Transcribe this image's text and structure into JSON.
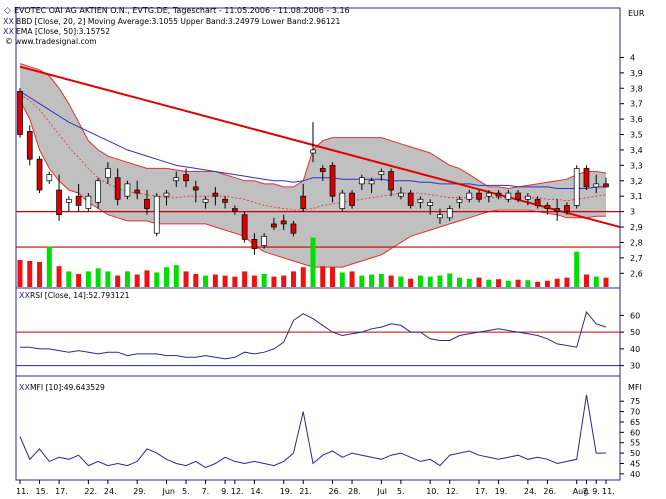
{
  "header": {
    "title_line": "EVOTEC OAI AG AKTIEN O.N., EVTG.DE, Tageschart - 11.05.2006 - 11.08.2006 - 3.16",
    "bb_line": "BBD [Close, 20, 2] Moving Average:3.1055 Upper Band:3.24979 Lower Band:2.96121",
    "ema_line": "EMA [Close, 50]:3.15752",
    "site_line": "www.tradesignal.com",
    "currency": "EUR"
  },
  "colors": {
    "bb_fill": "#c0c0c0",
    "bb_band": "#e03030",
    "ema": "#3030c8",
    "trendline": "#e00000",
    "up_candle": "#ffffff",
    "down_candle": "#d80000",
    "vol_up": "#00dd00",
    "vol_down": "#ee1111",
    "rsi_line": "#2a2a88",
    "mfi_line": "#2a2a88",
    "hline": "#cc0000",
    "panel_border": "#2a2a88"
  },
  "chart_data": [
    {
      "type": "candlestick",
      "title": "EVOTEC OAI AG AKTIEN O.N., EVTG.DE, Tageschart - 11.05.2006 - 11.08.2006 - 3.16",
      "ylabel": "EUR",
      "ylim": [
        2.55,
        4.1
      ],
      "yticks": [
        2.6,
        2.7,
        2.8,
        2.9,
        3,
        3.1,
        3.2,
        3.3,
        3.4,
        3.5,
        3.6,
        3.7,
        3.8,
        3.9,
        4
      ],
      "ohlc": [
        [
          3.78,
          3.8,
          3.48,
          3.5
        ],
        [
          3.52,
          3.56,
          3.3,
          3.34
        ],
        [
          3.34,
          3.36,
          3.12,
          3.14
        ],
        [
          3.2,
          3.26,
          3.18,
          3.24
        ],
        [
          3.14,
          3.24,
          2.94,
          2.98
        ],
        [
          3.06,
          3.1,
          3.0,
          3.08
        ],
        [
          3.1,
          3.18,
          3.0,
          3.04
        ],
        [
          3.02,
          3.12,
          3.0,
          3.1
        ],
        [
          3.06,
          3.22,
          3.02,
          3.2
        ],
        [
          3.22,
          3.32,
          3.18,
          3.28
        ],
        [
          3.22,
          3.28,
          3.04,
          3.08
        ],
        [
          3.1,
          3.2,
          3.08,
          3.18
        ],
        [
          3.14,
          3.2,
          3.08,
          3.12
        ],
        [
          3.08,
          3.14,
          2.98,
          3.02
        ],
        [
          2.86,
          3.12,
          2.84,
          3.1
        ],
        [
          3.1,
          3.14,
          3.04,
          3.12
        ],
        [
          3.2,
          3.26,
          3.16,
          3.22
        ],
        [
          3.24,
          3.28,
          3.16,
          3.2
        ],
        [
          3.16,
          3.2,
          3.06,
          3.14
        ],
        [
          3.06,
          3.1,
          3.02,
          3.08
        ],
        [
          3.12,
          3.16,
          3.04,
          3.1
        ],
        [
          3.08,
          3.1,
          3.02,
          3.06
        ],
        [
          3.02,
          3.04,
          2.98,
          3.0
        ],
        [
          2.98,
          3.0,
          2.8,
          2.82
        ],
        [
          2.82,
          2.86,
          2.72,
          2.76
        ],
        [
          2.78,
          2.86,
          2.76,
          2.84
        ],
        [
          2.92,
          2.96,
          2.88,
          2.9
        ],
        [
          2.94,
          2.98,
          2.88,
          2.92
        ],
        [
          2.92,
          2.94,
          2.84,
          2.86
        ],
        [
          3.1,
          3.18,
          3.0,
          3.02
        ],
        [
          3.38,
          3.58,
          3.32,
          3.4
        ],
        [
          3.28,
          3.3,
          3.2,
          3.26
        ],
        [
          3.3,
          3.32,
          3.06,
          3.1
        ],
        [
          3.02,
          3.14,
          3.0,
          3.12
        ],
        [
          3.12,
          3.14,
          3.02,
          3.04
        ],
        [
          3.18,
          3.24,
          3.14,
          3.22
        ],
        [
          3.18,
          3.22,
          3.12,
          3.2
        ],
        [
          3.24,
          3.28,
          3.2,
          3.26
        ],
        [
          3.26,
          3.28,
          3.1,
          3.14
        ],
        [
          3.1,
          3.16,
          3.08,
          3.12
        ],
        [
          3.12,
          3.14,
          3.02,
          3.04
        ],
        [
          3.06,
          3.1,
          3.02,
          3.08
        ],
        [
          3.04,
          3.08,
          2.98,
          3.06
        ],
        [
          2.96,
          3.02,
          2.92,
          2.98
        ],
        [
          2.96,
          3.04,
          2.94,
          3.02
        ],
        [
          3.06,
          3.1,
          3.02,
          3.08
        ],
        [
          3.08,
          3.14,
          3.06,
          3.12
        ],
        [
          3.12,
          3.14,
          3.06,
          3.08
        ],
        [
          3.1,
          3.14,
          3.06,
          3.12
        ],
        [
          3.12,
          3.14,
          3.08,
          3.1
        ],
        [
          3.08,
          3.14,
          3.06,
          3.12
        ],
        [
          3.12,
          3.14,
          3.06,
          3.08
        ],
        [
          3.08,
          3.12,
          3.04,
          3.1
        ],
        [
          3.08,
          3.1,
          3.02,
          3.04
        ],
        [
          3.04,
          3.06,
          2.98,
          3.02
        ],
        [
          3.02,
          3.08,
          2.94,
          3.0
        ],
        [
          3.04,
          3.06,
          2.98,
          3.0
        ],
        [
          3.04,
          3.3,
          3.02,
          3.28
        ],
        [
          3.28,
          3.3,
          3.14,
          3.16
        ],
        [
          3.16,
          3.24,
          3.12,
          3.18
        ],
        [
          3.18,
          3.22,
          3.16,
          3.16
        ]
      ],
      "bb_upper": [
        3.96,
        3.94,
        3.92,
        3.88,
        3.8,
        3.7,
        3.58,
        3.46,
        3.4,
        3.36,
        3.34,
        3.32,
        3.3,
        3.28,
        3.28,
        3.28,
        3.27,
        3.26,
        3.26,
        3.26,
        3.26,
        3.24,
        3.22,
        3.2,
        3.2,
        3.18,
        3.18,
        3.16,
        3.16,
        3.2,
        3.4,
        3.46,
        3.48,
        3.48,
        3.48,
        3.48,
        3.48,
        3.48,
        3.46,
        3.44,
        3.42,
        3.4,
        3.38,
        3.34,
        3.3,
        3.28,
        3.24,
        3.2,
        3.16,
        3.16,
        3.15,
        3.16,
        3.17,
        3.18,
        3.19,
        3.2,
        3.21,
        3.24,
        3.26,
        3.26,
        3.25
      ],
      "bb_mid": [
        3.76,
        3.72,
        3.66,
        3.58,
        3.5,
        3.42,
        3.35,
        3.28,
        3.22,
        3.18,
        3.15,
        3.13,
        3.12,
        3.11,
        3.1,
        3.09,
        3.09,
        3.1,
        3.1,
        3.1,
        3.1,
        3.1,
        3.09,
        3.08,
        3.06,
        3.04,
        3.03,
        3.02,
        3.01,
        3.01,
        3.02,
        3.04,
        3.05,
        3.06,
        3.07,
        3.08,
        3.09,
        3.1,
        3.11,
        3.12,
        3.12,
        3.12,
        3.11,
        3.1,
        3.09,
        3.09,
        3.09,
        3.09,
        3.09,
        3.09,
        3.09,
        3.09,
        3.09,
        3.09,
        3.08,
        3.08,
        3.07,
        3.08,
        3.09,
        3.1,
        3.11
      ],
      "bb_lower": [
        3.72,
        3.6,
        3.4,
        3.28,
        3.2,
        3.14,
        3.12,
        3.06,
        3.02,
        2.98,
        2.96,
        2.94,
        2.94,
        2.94,
        2.92,
        2.92,
        2.92,
        2.92,
        2.92,
        2.92,
        2.9,
        2.88,
        2.86,
        2.84,
        2.78,
        2.74,
        2.72,
        2.7,
        2.68,
        2.66,
        2.64,
        2.64,
        2.64,
        2.64,
        2.66,
        2.68,
        2.7,
        2.72,
        2.76,
        2.8,
        2.84,
        2.86,
        2.88,
        2.9,
        2.92,
        2.94,
        2.96,
        2.98,
        3.0,
        3.01,
        3.01,
        3.01,
        3.01,
        3.0,
        2.99,
        2.98,
        2.96,
        2.96,
        2.96,
        2.97,
        2.97
      ],
      "ema50": [
        3.78,
        3.74,
        3.7,
        3.66,
        3.62,
        3.58,
        3.55,
        3.52,
        3.49,
        3.46,
        3.43,
        3.4,
        3.38,
        3.36,
        3.34,
        3.32,
        3.3,
        3.29,
        3.28,
        3.27,
        3.26,
        3.25,
        3.24,
        3.23,
        3.22,
        3.21,
        3.2,
        3.2,
        3.19,
        3.2,
        3.22,
        3.22,
        3.22,
        3.21,
        3.21,
        3.21,
        3.21,
        3.21,
        3.2,
        3.2,
        3.2,
        3.19,
        3.19,
        3.18,
        3.18,
        3.18,
        3.18,
        3.17,
        3.17,
        3.17,
        3.17,
        3.16,
        3.16,
        3.16,
        3.16,
        3.15,
        3.15,
        3.15,
        3.15,
        3.16,
        3.16
      ],
      "trendline": {
        "from": [
          0,
          3.94
        ],
        "to": [
          60,
          2.94
        ]
      },
      "hlines": [
        3.0,
        2.77
      ],
      "volume": [
        0.52,
        0.5,
        0.48,
        0.78,
        0.4,
        0.3,
        0.25,
        0.3,
        0.36,
        0.3,
        0.22,
        0.3,
        0.24,
        0.32,
        0.28,
        0.38,
        0.42,
        0.3,
        0.25,
        0.22,
        0.24,
        0.22,
        0.2,
        0.3,
        0.22,
        0.25,
        0.2,
        0.22,
        0.3,
        0.38,
        0.95,
        0.4,
        0.38,
        0.28,
        0.3,
        0.22,
        0.24,
        0.25,
        0.22,
        0.2,
        0.16,
        0.22,
        0.2,
        0.22,
        0.26,
        0.18,
        0.16,
        0.18,
        0.14,
        0.15,
        0.12,
        0.14,
        0.13,
        0.1,
        0.12,
        0.16,
        0.18,
        0.68,
        0.24,
        0.2,
        0.18
      ],
      "xtick_labels": [
        "11.",
        "15.",
        "17.",
        "22.",
        "24.",
        "29.",
        "Jun",
        "5.",
        "7.",
        "9.",
        "12.",
        "14.",
        "19.",
        "21.",
        "26.",
        "28.",
        "Jul",
        "5.",
        "10.",
        "12.",
        "17.",
        "19.",
        "24.",
        "26.",
        "Aug",
        "7.",
        "9.",
        "11."
      ],
      "xtick_index": [
        0,
        2,
        4,
        7,
        9,
        12,
        15,
        17,
        19,
        21,
        22,
        24,
        27,
        29,
        32,
        34,
        37,
        39,
        42,
        44,
        47,
        49,
        52,
        54,
        57,
        58,
        59,
        60
      ]
    },
    {
      "type": "line",
      "title": "RSI [Close, 14]:52.793121",
      "ylim": [
        25,
        68
      ],
      "yticks": [
        30,
        40,
        50,
        60
      ],
      "hlines": [
        50
      ],
      "values": [
        41,
        41,
        40,
        40,
        39,
        38,
        39,
        38,
        37,
        38,
        38,
        36,
        37,
        37,
        37,
        36,
        36,
        35,
        35,
        36,
        35,
        34,
        35,
        38,
        37,
        38,
        40,
        44,
        57,
        61,
        58,
        54,
        50,
        48,
        49,
        50,
        52,
        53,
        55,
        54,
        50,
        50,
        46,
        45,
        45,
        48,
        49,
        50,
        51,
        52,
        51,
        50,
        49,
        48,
        46,
        43,
        42,
        41,
        62,
        55,
        53
      ],
      "xlim": [
        0,
        60
      ]
    },
    {
      "type": "line",
      "title": "MFI [10]:49.643529",
      "ylabel": "MFI",
      "ylim": [
        38,
        78
      ],
      "yticks": [
        40,
        45,
        50,
        55,
        60,
        65,
        70,
        75
      ],
      "values": [
        58,
        47,
        52,
        46,
        48,
        47,
        49,
        44,
        46,
        44,
        45,
        44,
        46,
        52,
        50,
        47,
        45,
        44,
        46,
        43,
        45,
        48,
        46,
        45,
        46,
        45,
        44,
        46,
        50,
        70,
        45,
        49,
        51,
        48,
        50,
        49,
        48,
        47,
        49,
        50,
        48,
        46,
        47,
        44,
        49,
        50,
        51,
        49,
        48,
        47,
        48,
        49,
        47,
        48,
        47,
        45,
        46,
        47,
        78,
        50,
        50
      ],
      "xlim": [
        0,
        60
      ]
    }
  ]
}
